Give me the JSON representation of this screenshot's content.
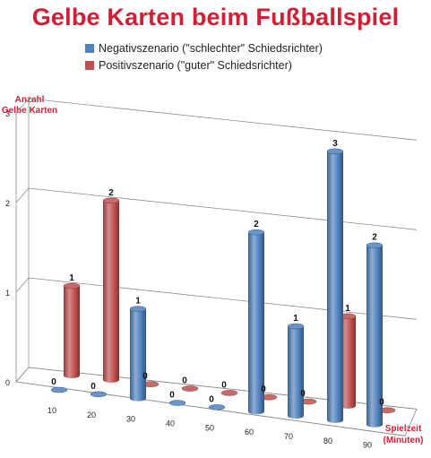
{
  "chart_data": {
    "type": "bar",
    "title": "Gelbe Karten beim Fußballspiel",
    "ylabel": [
      "Anzahl",
      "Gelbe Karten"
    ],
    "xlabel": [
      "Spielzeit",
      "(Minuten)"
    ],
    "categories": [
      "10",
      "20",
      "30",
      "40",
      "50",
      "60",
      "70",
      "80",
      "90"
    ],
    "yticks": [
      "0",
      "1",
      "2",
      "3"
    ],
    "ylim": [
      0,
      3
    ],
    "grid": true,
    "legend": "top",
    "series": [
      {
        "name": "Negativszenario (\"schlechter\" Schiedsrichter)",
        "color": "#4f81bd",
        "values": [
          0,
          0,
          1,
          0,
          0,
          2,
          1,
          3,
          2
        ],
        "labels": [
          "0",
          "0",
          "1",
          "0",
          "0",
          "2",
          "1",
          "3",
          "2"
        ]
      },
      {
        "name": "Positivszenario (\"guter\" Schiedsrichter)",
        "color": "#c0504d",
        "values": [
          1,
          2,
          0,
          0,
          0,
          0,
          0,
          1,
          0
        ],
        "labels": [
          "1",
          "2",
          "0",
          "0",
          "0",
          "0",
          "0",
          "1",
          "0"
        ]
      }
    ]
  }
}
